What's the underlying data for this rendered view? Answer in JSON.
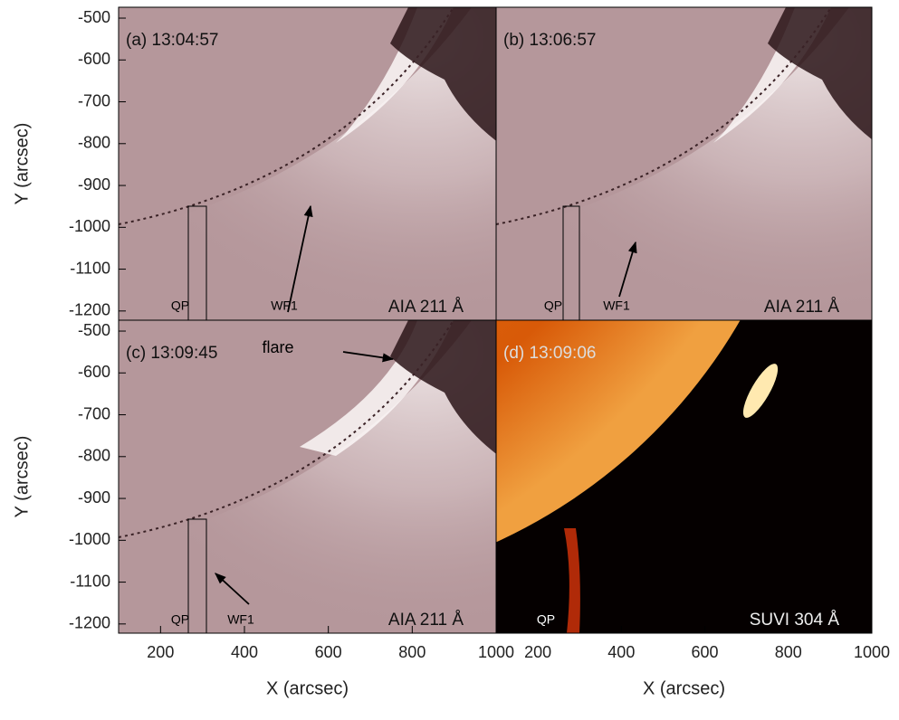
{
  "chart_data": [
    {
      "type": "image",
      "label": "(a) 13:04:57",
      "instrument": "AIA 211 Å",
      "annotations": [
        "QP",
        "WF1"
      ],
      "xlim": [
        100,
        1000
      ],
      "ylim": [
        -1222,
        -474
      ],
      "yticks": [
        -500,
        -600,
        -700,
        -800,
        -900,
        -1000,
        -1100,
        -1200
      ],
      "y_label": "Y (arcsec)"
    },
    {
      "type": "image",
      "label": "(b) 13:06:57",
      "instrument": "AIA 211 Å",
      "annotations": [
        "QP",
        "WF1"
      ],
      "xlim": [
        100,
        1000
      ],
      "ylim": [
        -1222,
        -474
      ]
    },
    {
      "type": "image",
      "label": "(c) 13:09:45",
      "instrument": "AIA 211 Å",
      "annotations": [
        "QP",
        "WF1",
        "flare"
      ],
      "xlim": [
        100,
        1000
      ],
      "ylim": [
        -1222,
        -474
      ],
      "xticks": [
        200,
        400,
        600,
        800,
        1000
      ],
      "yticks": [
        -500,
        -600,
        -700,
        -800,
        -900,
        -1000,
        -1100,
        -1200
      ],
      "x_label": "X (arcsec)",
      "y_label": "Y (arcsec)"
    },
    {
      "type": "sun",
      "label": "(d) 13:09:06",
      "instrument": "SUVI 304 Å",
      "annotations": [
        "QP"
      ],
      "xlim": [
        100,
        1000
      ],
      "ylim": [
        -1222,
        -474
      ],
      "xticks": [
        200,
        400,
        600,
        800,
        1000
      ],
      "x_label": "X (arcsec)"
    }
  ]
}
